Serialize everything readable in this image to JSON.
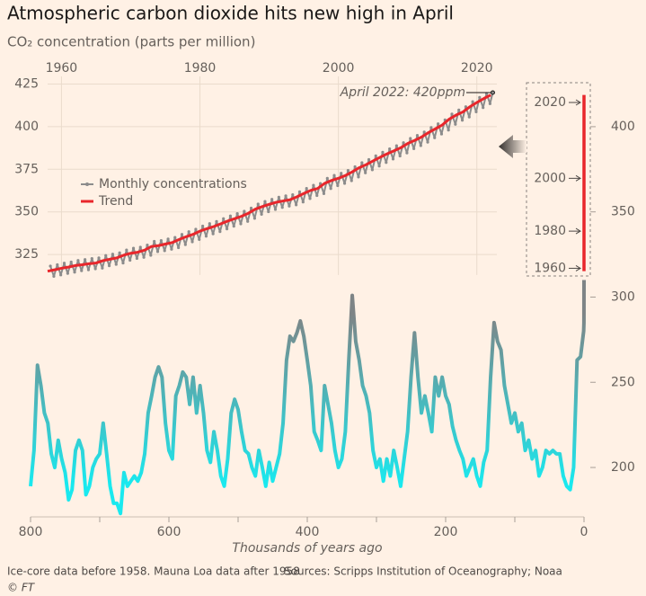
{
  "title": "Atmospheric carbon dioxide hits new high in April",
  "subtitle": "CO₂ concentration (parts per million)",
  "note": "Ice-core data before 1958. Mauna Loa data after 1958",
  "source": "Sources: Scripps Institution of Oceanography; Noaa",
  "credit": "© FT",
  "chart_data": [
    {
      "type": "line",
      "annotation": "April 2022: 420ppm",
      "xlim": [
        1958,
        2022.5
      ],
      "ylim": [
        313,
        429.5
      ],
      "xticks": [
        1960,
        1980,
        2000,
        2020
      ],
      "yticks": [
        325,
        350,
        375,
        400,
        425
      ],
      "grid": true,
      "series": [
        {
          "name": "Monthly concentrations",
          "color": "#8c8c8c",
          "markers": true,
          "x": [
            1958.4,
            1958.9,
            1959.4,
            1959.9,
            1960.4,
            1960.9,
            1961.4,
            1961.9,
            1962.4,
            1962.9,
            1963.4,
            1963.9,
            1964.4,
            1964.9,
            1965.4,
            1965.9,
            1966.4,
            1966.9,
            1967.4,
            1967.9,
            1968.4,
            1968.9,
            1969.4,
            1969.9,
            1970.4,
            1970.9,
            1971.4,
            1971.9,
            1972.4,
            1972.9,
            1973.4,
            1973.9,
            1974.4,
            1974.9,
            1975.4,
            1975.9,
            1976.4,
            1976.9,
            1977.4,
            1977.9,
            1978.4,
            1978.9,
            1979.4,
            1979.9,
            1980.4,
            1980.9,
            1981.4,
            1981.9,
            1982.4,
            1982.9,
            1983.4,
            1983.9,
            1984.4,
            1984.9,
            1985.4,
            1985.9,
            1986.4,
            1986.9,
            1987.4,
            1987.9,
            1988.4,
            1988.9,
            1989.4,
            1989.9,
            1990.4,
            1990.9,
            1991.4,
            1991.9,
            1992.4,
            1992.9,
            1993.4,
            1993.9,
            1994.4,
            1994.9,
            1995.4,
            1995.9,
            1996.4,
            1996.9,
            1997.4,
            1997.9,
            1998.4,
            1998.9,
            1999.4,
            1999.9,
            2000.4,
            2000.9,
            2001.4,
            2001.9,
            2002.4,
            2002.9,
            2003.4,
            2003.9,
            2004.4,
            2004.9,
            2005.4,
            2005.9,
            2006.4,
            2006.9,
            2007.4,
            2007.9,
            2008.4,
            2008.9,
            2009.4,
            2009.9,
            2010.4,
            2010.9,
            2011.4,
            2011.9,
            2012.4,
            2012.9,
            2013.4,
            2013.9,
            2014.4,
            2014.9,
            2015.4,
            2015.9,
            2016.4,
            2016.9,
            2017.4,
            2017.9,
            2018.4,
            2018.9,
            2019.4,
            2019.9,
            2020.4,
            2020.9,
            2021.4,
            2021.9,
            2022.3
          ],
          "values": [
            318.2,
            312.2,
            319.0,
            313.0,
            319.9,
            313.9,
            320.6,
            314.6,
            321.5,
            315.5,
            322.0,
            316.0,
            322.6,
            316.6,
            323.0,
            317.0,
            324.4,
            318.4,
            325.2,
            319.2,
            326.0,
            320.0,
            327.6,
            321.6,
            328.7,
            322.7,
            329.3,
            323.3,
            330.5,
            324.5,
            332.7,
            326.7,
            333.2,
            327.2,
            334.1,
            328.1,
            335.0,
            329.0,
            336.8,
            330.8,
            338.4,
            332.4,
            339.8,
            333.8,
            341.7,
            335.7,
            343.1,
            337.1,
            344.4,
            338.4,
            346.0,
            340.0,
            347.6,
            341.6,
            349.0,
            343.0,
            350.4,
            344.4,
            352.2,
            346.2,
            354.6,
            348.6,
            356.1,
            350.1,
            357.4,
            351.4,
            358.6,
            352.6,
            359.4,
            353.4,
            360.1,
            354.1,
            361.8,
            355.8,
            363.8,
            357.8,
            365.6,
            359.6,
            366.7,
            360.7,
            369.7,
            363.7,
            371.4,
            365.4,
            372.7,
            366.7,
            374.3,
            368.3,
            376.5,
            370.5,
            378.9,
            372.9,
            380.7,
            374.7,
            382.9,
            376.9,
            385.0,
            379.0,
            387.0,
            381.0,
            388.8,
            382.8,
            390.6,
            384.6,
            393.1,
            387.1,
            394.9,
            388.9,
            396.9,
            390.9,
            399.5,
            393.5,
            401.7,
            395.7,
            404.0,
            398.0,
            407.4,
            401.4,
            409.8,
            403.8,
            411.7,
            405.7,
            414.7,
            408.7,
            417.2,
            411.2,
            419.5,
            413.5,
            420
          ]
        },
        {
          "name": "Trend",
          "color": "#e8262b",
          "x": [
            1958,
            1959,
            1960,
            1961,
            1962,
            1963,
            1964,
            1965,
            1966,
            1967,
            1968,
            1969,
            1970,
            1971,
            1972,
            1973,
            1974,
            1975,
            1976,
            1977,
            1978,
            1979,
            1980,
            1981,
            1982,
            1983,
            1984,
            1985,
            1986,
            1987,
            1988,
            1989,
            1990,
            1991,
            1992,
            1993,
            1994,
            1995,
            1996,
            1997,
            1998,
            1999,
            2000,
            2001,
            2002,
            2003,
            2004,
            2005,
            2006,
            2007,
            2008,
            2009,
            2010,
            2011,
            2012,
            2013,
            2014,
            2015,
            2016,
            2017,
            2018,
            2019,
            2020,
            2021,
            2022
          ],
          "values": [
            315.2,
            316.0,
            316.9,
            317.6,
            318.5,
            319.0,
            319.6,
            320.0,
            321.4,
            322.2,
            323.0,
            324.6,
            325.7,
            326.3,
            327.5,
            329.7,
            330.2,
            331.1,
            332.0,
            333.8,
            335.4,
            336.8,
            338.7,
            340.1,
            341.4,
            343.0,
            344.6,
            346.0,
            347.4,
            349.2,
            351.6,
            353.1,
            354.4,
            355.6,
            356.4,
            357.1,
            358.8,
            360.8,
            362.6,
            363.7,
            366.7,
            368.4,
            369.7,
            371.3,
            373.5,
            375.9,
            377.7,
            379.9,
            382.0,
            384.0,
            385.8,
            387.6,
            390.1,
            391.9,
            393.9,
            396.5,
            398.7,
            401.0,
            404.4,
            406.8,
            408.7,
            411.7,
            414.2,
            416.5,
            418.6
          ]
        }
      ]
    },
    {
      "type": "line",
      "xlabel": "Thousands of years ago",
      "xlim": [
        800,
        0
      ],
      "ylim": [
        171,
        429.5
      ],
      "xticks": [
        800,
        600,
        400,
        200,
        0
      ],
      "xminor": [
        700,
        500,
        300,
        100
      ],
      "yticks": [
        200,
        250,
        300,
        350,
        400
      ],
      "year_markers": [
        1960,
        1980,
        2000,
        2020
      ],
      "spike_color": "#e8262b",
      "x": [
        800,
        795,
        790,
        785,
        780,
        775,
        770,
        765,
        760,
        755,
        750,
        745,
        740,
        735,
        730,
        725,
        720,
        715,
        710,
        705,
        700,
        695,
        690,
        685,
        680,
        675,
        670,
        665,
        660,
        655,
        650,
        645,
        640,
        635,
        630,
        625,
        620,
        615,
        610,
        605,
        600,
        595,
        590,
        585,
        580,
        575,
        570,
        565,
        560,
        555,
        550,
        545,
        540,
        535,
        530,
        525,
        520,
        515,
        510,
        505,
        500,
        495,
        490,
        485,
        480,
        475,
        470,
        465,
        460,
        455,
        450,
        445,
        440,
        435,
        430,
        425,
        420,
        415,
        410,
        405,
        400,
        395,
        390,
        385,
        380,
        375,
        370,
        365,
        360,
        355,
        350,
        345,
        340,
        335,
        330,
        325,
        320,
        315,
        310,
        305,
        300,
        295,
        290,
        285,
        280,
        275,
        270,
        265,
        260,
        255,
        250,
        245,
        240,
        235,
        230,
        225,
        220,
        215,
        210,
        205,
        200,
        195,
        190,
        185,
        180,
        175,
        170,
        165,
        160,
        155,
        150,
        145,
        140,
        135,
        130,
        125,
        120,
        115,
        110,
        105,
        100,
        95,
        90,
        85,
        80,
        75,
        70,
        65,
        60,
        55,
        50,
        45,
        40,
        35,
        30,
        25,
        20,
        15,
        10,
        5,
        2,
        0.5,
        0.1,
        0
      ],
      "series": [
        {
          "colors": [
            "#19e9ef",
            "#7e8486"
          ],
          "values": [
            189,
            210,
            260,
            248,
            232,
            226,
            208,
            200,
            216,
            205,
            197,
            181,
            187,
            210,
            216,
            210,
            184,
            189,
            200,
            205,
            208,
            226,
            208,
            189,
            179,
            179,
            173,
            197,
            189,
            192,
            195,
            192,
            197,
            208,
            232,
            242,
            253,
            259,
            253,
            226,
            210,
            205,
            242,
            248,
            256,
            253,
            237,
            253,
            232,
            248,
            232,
            210,
            203,
            221,
            210,
            195,
            189,
            205,
            232,
            240,
            234,
            221,
            210,
            208,
            200,
            195,
            210,
            200,
            189,
            203,
            192,
            200,
            208,
            226,
            263,
            277,
            274,
            279,
            286,
            277,
            263,
            248,
            221,
            216,
            210,
            248,
            237,
            226,
            210,
            200,
            205,
            221,
            263,
            301,
            274,
            263,
            248,
            242,
            232,
            210,
            200,
            205,
            192,
            205,
            195,
            210,
            200,
            189,
            205,
            221,
            253,
            279,
            253,
            232,
            242,
            232,
            221,
            253,
            242,
            253,
            242,
            237,
            224,
            216,
            210,
            205,
            195,
            200,
            205,
            195,
            189,
            203,
            210,
            253,
            285,
            274,
            269,
            248,
            237,
            226,
            232,
            221,
            226,
            210,
            216,
            205,
            210,
            195,
            200,
            210,
            208,
            210,
            208,
            208,
            195,
            189,
            187,
            200,
            263,
            265,
            275,
            280,
            285,
            310
          ]
        }
      ]
    }
  ]
}
